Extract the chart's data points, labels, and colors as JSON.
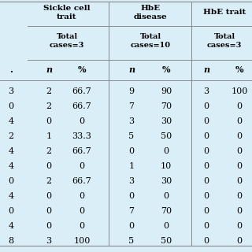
{
  "col_headers": [
    {
      "line1": "Sickle cell",
      "line2": "trait"
    },
    {
      "line1": "HbE",
      "line2": "disease"
    },
    {
      "line1": "HbE trait",
      "line2": ""
    }
  ],
  "sub_headers": [
    "Total\ncases=3",
    "Total\ncases=10",
    "Total\ncases=3"
  ],
  "left_col_vals": [
    "3",
    "0",
    "4",
    "2",
    "4",
    "4",
    "0",
    "4",
    "0",
    "4",
    "8"
  ],
  "left_col_label": ".",
  "data": [
    [
      "2",
      "66.7",
      "9",
      "90",
      "3",
      "100"
    ],
    [
      "2",
      "66.7",
      "7",
      "70",
      "0",
      "0"
    ],
    [
      "0",
      "0",
      "3",
      "30",
      "0",
      "0"
    ],
    [
      "1",
      "33.3",
      "5",
      "50",
      "0",
      "0"
    ],
    [
      "2",
      "66.7",
      "0",
      "0",
      "0",
      "0"
    ],
    [
      "0",
      "0",
      "1",
      "10",
      "0",
      "0"
    ],
    [
      "2",
      "66.7",
      "3",
      "30",
      "0",
      "0"
    ],
    [
      "0",
      "0",
      "0",
      "0",
      "0",
      "0"
    ],
    [
      "0",
      "0",
      "7",
      "70",
      "0",
      "0"
    ],
    [
      "0",
      "0",
      "0",
      "0",
      "0",
      "0"
    ],
    [
      "3",
      "100",
      "5",
      "50",
      "0",
      "0"
    ]
  ],
  "background_color": "#daeef8",
  "text_color": "#000000",
  "line_color": "#888888",
  "fig_width": 3.2,
  "fig_height": 3.2,
  "dpi": 100
}
